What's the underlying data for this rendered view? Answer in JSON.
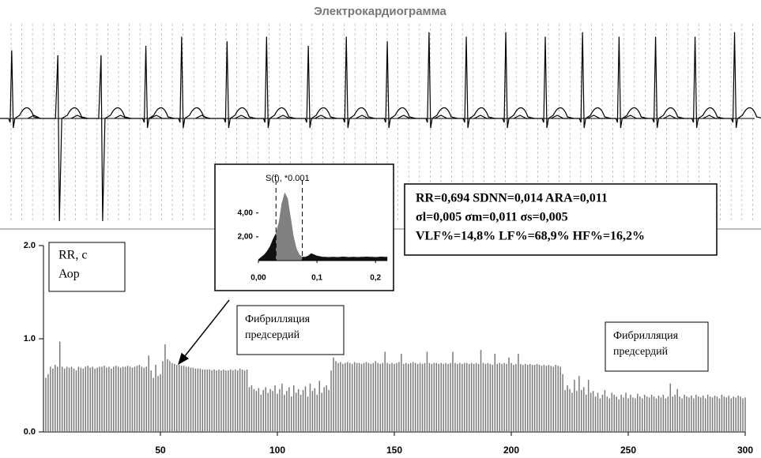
{
  "chart_data": [
    {
      "type": "ecg",
      "title": "Электрокардиограмма",
      "xlim": [
        0,
        100
      ],
      "ylim": [
        -1,
        1
      ],
      "x": [
        0.3,
        6.7,
        12.5,
        18.3,
        23.1,
        29.2,
        34.5,
        40.1,
        45.2,
        50.7,
        56.3,
        61.3,
        66.6,
        71.9,
        76.9,
        81.8,
        86.7,
        92.0,
        97.3
      ],
      "values": [
        0.75,
        -1,
        -1,
        0.8,
        0.9,
        0.85,
        0.9,
        0.8,
        0.9,
        0.85,
        0.95,
        0.9,
        0.95,
        0.9,
        0.95,
        0.9,
        0.9,
        0.9,
        0.95
      ],
      "color": "#000000"
    },
    {
      "type": "bar",
      "color": "#7a7a7a",
      "xlim": [
        0,
        300
      ],
      "ylim": [
        0,
        2
      ],
      "xticks": [
        50,
        100,
        150,
        200,
        250,
        300
      ],
      "yticks": [
        {
          "value": 0,
          "label": "0.0"
        },
        {
          "value": 1,
          "label": "1.0"
        },
        {
          "value": 2,
          "label": "2.0"
        }
      ],
      "x": [
        1,
        2,
        3,
        4,
        5,
        6,
        7,
        8,
        9,
        10,
        11,
        12,
        13,
        14,
        15,
        16,
        17,
        18,
        19,
        20,
        21,
        22,
        23,
        24,
        25,
        26,
        27,
        28,
        29,
        30,
        31,
        32,
        33,
        34,
        35,
        36,
        37,
        38,
        39,
        40,
        41,
        42,
        43,
        44,
        45,
        46,
        47,
        48,
        49,
        50,
        51,
        52,
        53,
        54,
        55,
        56,
        57,
        58,
        59,
        60,
        61,
        62,
        63,
        64,
        65,
        66,
        67,
        68,
        69,
        70,
        71,
        72,
        73,
        74,
        75,
        76,
        77,
        78,
        79,
        80,
        81,
        82,
        83,
        84,
        85,
        86,
        87,
        88,
        89,
        90,
        91,
        92,
        93,
        94,
        95,
        96,
        97,
        98,
        99,
        100,
        101,
        102,
        103,
        104,
        105,
        106,
        107,
        108,
        109,
        110,
        111,
        112,
        113,
        114,
        115,
        116,
        117,
        118,
        119,
        120,
        121,
        122,
        123,
        124,
        125,
        126,
        127,
        128,
        129,
        130,
        131,
        132,
        133,
        134,
        135,
        136,
        137,
        138,
        139,
        140,
        141,
        142,
        143,
        144,
        145,
        146,
        147,
        148,
        149,
        150,
        151,
        152,
        153,
        154,
        155,
        156,
        157,
        158,
        159,
        160,
        161,
        162,
        163,
        164,
        165,
        166,
        167,
        168,
        169,
        170,
        171,
        172,
        173,
        174,
        175,
        176,
        177,
        178,
        179,
        180,
        181,
        182,
        183,
        184,
        185,
        186,
        187,
        188,
        189,
        190,
        191,
        192,
        193,
        194,
        195,
        196,
        197,
        198,
        199,
        200,
        201,
        202,
        203,
        204,
        205,
        206,
        207,
        208,
        209,
        210,
        211,
        212,
        213,
        214,
        215,
        216,
        217,
        218,
        219,
        220,
        221,
        222,
        223,
        224,
        225,
        226,
        227,
        228,
        229,
        230,
        231,
        232,
        233,
        234,
        235,
        236,
        237,
        238,
        239,
        240,
        241,
        242,
        243,
        244,
        245,
        246,
        247,
        248,
        249,
        250,
        251,
        252,
        253,
        254,
        255,
        256,
        257,
        258,
        259,
        260,
        261,
        262,
        263,
        264,
        265,
        266,
        267,
        268,
        269,
        270,
        271,
        272,
        273,
        274,
        275,
        276,
        277,
        278,
        279,
        280,
        281,
        282,
        283,
        284,
        285,
        286,
        287,
        288,
        289,
        290,
        291,
        292,
        293,
        294,
        295,
        296,
        297,
        298,
        299,
        300
      ],
      "values": [
        0.58,
        0.62,
        0.7,
        0.68,
        0.72,
        0.7,
        0.97,
        0.7,
        0.68,
        0.7,
        0.69,
        0.7,
        0.68,
        0.66,
        0.7,
        0.69,
        0.68,
        0.7,
        0.71,
        0.69,
        0.7,
        0.68,
        0.69,
        0.7,
        0.7,
        0.71,
        0.69,
        0.7,
        0.68,
        0.7,
        0.71,
        0.7,
        0.69,
        0.7,
        0.7,
        0.71,
        0.7,
        0.69,
        0.7,
        0.71,
        0.72,
        0.7,
        0.69,
        0.7,
        0.82,
        0.66,
        0.58,
        0.72,
        0.6,
        0.62,
        0.76,
        0.94,
        0.78,
        0.76,
        0.74,
        0.73,
        0.72,
        0.72,
        0.71,
        0.71,
        0.7,
        0.7,
        0.69,
        0.69,
        0.68,
        0.68,
        0.68,
        0.67,
        0.67,
        0.67,
        0.67,
        0.66,
        0.67,
        0.66,
        0.67,
        0.66,
        0.67,
        0.66,
        0.66,
        0.67,
        0.66,
        0.67,
        0.66,
        0.68,
        0.67,
        0.66,
        0.67,
        0.48,
        0.5,
        0.46,
        0.44,
        0.47,
        0.4,
        0.45,
        0.48,
        0.42,
        0.46,
        0.44,
        0.5,
        0.41,
        0.46,
        0.52,
        0.4,
        0.44,
        0.48,
        0.38,
        0.5,
        0.42,
        0.46,
        0.4,
        0.45,
        0.49,
        0.38,
        0.52,
        0.44,
        0.47,
        0.4,
        0.55,
        0.42,
        0.48,
        0.5,
        0.45,
        0.66,
        0.8,
        0.76,
        0.74,
        0.75,
        0.73,
        0.74,
        0.75,
        0.74,
        0.73,
        0.75,
        0.74,
        0.74,
        0.73,
        0.74,
        0.75,
        0.74,
        0.73,
        0.74,
        0.76,
        0.74,
        0.73,
        0.74,
        0.86,
        0.74,
        0.73,
        0.74,
        0.73,
        0.74,
        0.75,
        0.84,
        0.73,
        0.74,
        0.73,
        0.74,
        0.75,
        0.74,
        0.73,
        0.74,
        0.73,
        0.74,
        0.86,
        0.74,
        0.73,
        0.74,
        0.74,
        0.73,
        0.74,
        0.73,
        0.74,
        0.73,
        0.74,
        0.86,
        0.74,
        0.73,
        0.74,
        0.73,
        0.74,
        0.74,
        0.73,
        0.74,
        0.73,
        0.74,
        0.73,
        0.88,
        0.74,
        0.73,
        0.74,
        0.73,
        0.72,
        0.84,
        0.73,
        0.74,
        0.73,
        0.74,
        0.73,
        0.8,
        0.74,
        0.72,
        0.73,
        0.84,
        0.73,
        0.72,
        0.73,
        0.72,
        0.73,
        0.72,
        0.72,
        0.73,
        0.72,
        0.71,
        0.72,
        0.71,
        0.72,
        0.71,
        0.7,
        0.72,
        0.71,
        0.7,
        0.62,
        0.45,
        0.5,
        0.46,
        0.42,
        0.56,
        0.44,
        0.6,
        0.45,
        0.48,
        0.4,
        0.56,
        0.42,
        0.44,
        0.38,
        0.42,
        0.36,
        0.4,
        0.45,
        0.38,
        0.36,
        0.42,
        0.4,
        0.38,
        0.35,
        0.4,
        0.37,
        0.42,
        0.36,
        0.4,
        0.37,
        0.36,
        0.41,
        0.38,
        0.36,
        0.4,
        0.38,
        0.37,
        0.4,
        0.38,
        0.36,
        0.39,
        0.37,
        0.4,
        0.36,
        0.38,
        0.52,
        0.38,
        0.4,
        0.46,
        0.38,
        0.36,
        0.4,
        0.38,
        0.37,
        0.39,
        0.36,
        0.4,
        0.38,
        0.37,
        0.39,
        0.36,
        0.4,
        0.38,
        0.37,
        0.39,
        0.38,
        0.36,
        0.4,
        0.38,
        0.37,
        0.39,
        0.36,
        0.38,
        0.37,
        0.39,
        0.38,
        0.36,
        0.37
      ],
      "annotations": [
        {
          "lines": [
            "RR, с",
            "Аор"
          ]
        },
        {
          "lines": [
            "Фибрилляция",
            "предсердий"
          ]
        },
        {
          "lines": [
            "Фибрилляция",
            "предсердий"
          ]
        }
      ]
    },
    {
      "type": "area",
      "title": "S(f), *0.001",
      "color": "#111111",
      "band_color": "#808080",
      "xlim": [
        0,
        0.22
      ],
      "ylim": [
        0,
        6.3
      ],
      "xticks": [
        {
          "value": 0,
          "label": "0,00"
        },
        {
          "value": 0.1,
          "label": "0,1"
        },
        {
          "value": 0.2,
          "label": "0,2"
        }
      ],
      "yticks": [
        {
          "value": 2,
          "label": "2,00"
        },
        {
          "value": 4,
          "label": "4,00"
        }
      ],
      "band_edges": [
        0.03,
        0.075
      ],
      "x": [
        0,
        0.005,
        0.01,
        0.015,
        0.02,
        0.025,
        0.03,
        0.035,
        0.04,
        0.045,
        0.05,
        0.055,
        0.06,
        0.065,
        0.07,
        0.075,
        0.08,
        0.085,
        0.09,
        0.095,
        0.1,
        0.105,
        0.11,
        0.115,
        0.12,
        0.125,
        0.13,
        0.135,
        0.14,
        0.145,
        0.15,
        0.155,
        0.16,
        0.165,
        0.17,
        0.175,
        0.18,
        0.185,
        0.19,
        0.195,
        0.2,
        0.205,
        0.21,
        0.215,
        0.22
      ],
      "values": [
        0.1,
        0.3,
        0.5,
        0.8,
        1.2,
        1.8,
        2.3,
        3.2,
        4.8,
        5.7,
        5.2,
        3.6,
        2.0,
        1.0,
        0.5,
        0.3,
        0.3,
        0.4,
        0.6,
        0.5,
        0.4,
        0.35,
        0.3,
        0.3,
        0.28,
        0.3,
        0.3,
        0.28,
        0.3,
        0.32,
        0.3,
        0.28,
        0.3,
        0.3,
        0.28,
        0.3,
        0.3,
        0.32,
        0.3,
        0.3,
        0.28,
        0.3,
        0.32,
        0.3,
        0.3
      ],
      "stats": [
        "RR=0,694 SDNN=0,014 ARA=0,011",
        "σl=0,005 σm=0,011 σs=0,005",
        "VLF%=14,8% LF%=68,9% HF%=16,2%"
      ]
    }
  ]
}
